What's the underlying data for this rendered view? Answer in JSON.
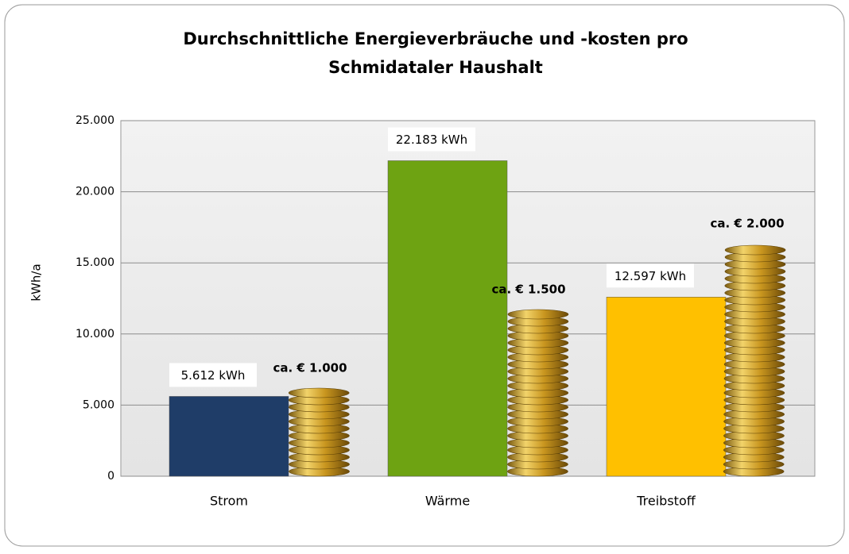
{
  "chart_data": {
    "type": "bar",
    "title": "Durchschnittliche Energieverbräuche und -kosten pro",
    "subtitle": "Schmidataler Haushalt",
    "y_label": "kWh/a",
    "categories": [
      "Strom",
      "Wärme",
      "Treibstoff"
    ],
    "values": [
      5612,
      22183,
      12597
    ],
    "value_labels": [
      "5.612 kWh",
      "22.183 kWh",
      "12.597 kWh"
    ],
    "colors": [
      "#1f3d68",
      "#6ea312",
      "#ffc000"
    ],
    "annotations": [
      "ca. € 1.000",
      "ca. € 1.500",
      "ca. € 2.000"
    ],
    "ylim": [
      0,
      25000
    ],
    "yticks": [
      0,
      {
        "value": 5000,
        "label": "5.000"
      },
      {
        "value": 10000,
        "label": "10.000"
      },
      {
        "value": 15000,
        "label": "15.000"
      },
      {
        "value": 20000,
        "label": "20.000"
      },
      {
        "value": 25000,
        "label": "25.000"
      }
    ],
    "grid": true
  }
}
